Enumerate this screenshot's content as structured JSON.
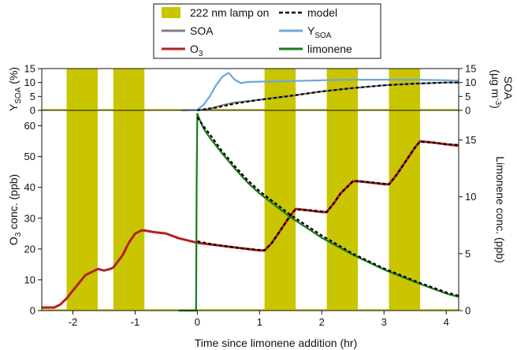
{
  "chart_data": [
    {
      "type": "line",
      "panel": "top",
      "xlabel": "",
      "ylabel_left": "Y_SOA (%)",
      "ylabel_right": "SOA (μg m⁻³)",
      "xlim": [
        -2.5,
        4.2
      ],
      "ylim_left": [
        0,
        15
      ],
      "ylim_right": [
        0,
        15
      ],
      "yticks_left": [
        0,
        5,
        10,
        15
      ],
      "yticks_right": [
        0,
        5,
        10,
        15
      ],
      "lamp_on_intervals": [
        [
          -2.1,
          -1.6
        ],
        [
          -1.35,
          -0.85
        ],
        [
          1.08,
          1.58
        ],
        [
          2.08,
          2.58
        ],
        [
          3.08,
          3.58
        ]
      ],
      "series": [
        {
          "name": "Y_SOA",
          "axis": "left",
          "color": "#6ea6d8",
          "x": [
            -0.25,
            0.0,
            0.1,
            0.2,
            0.3,
            0.4,
            0.5,
            0.6,
            0.7,
            0.8,
            1.0,
            1.5,
            2.0,
            2.5,
            3.0,
            3.5,
            4.0,
            4.2
          ],
          "y": [
            0,
            0.2,
            2,
            5,
            9,
            12,
            13.5,
            11,
            9.8,
            10.2,
            10.3,
            10.5,
            10.8,
            11,
            11,
            11,
            10.8,
            10.6
          ]
        },
        {
          "name": "SOA",
          "axis": "right",
          "color": "#7f7f7f",
          "x": [
            0.0,
            0.2,
            0.4,
            0.6,
            0.8,
            1.0
          ],
          "y": [
            0,
            0.6,
            1.8,
            2.8,
            3.3,
            3.8
          ]
        },
        {
          "name": "SOA",
          "axis": "right",
          "color": "#7f7f7f",
          "x": [
            1.0,
            1.5,
            2.0,
            2.5,
            3.0,
            3.5,
            4.0,
            4.2
          ],
          "y": [
            3.8,
            5.2,
            6.8,
            8.0,
            9.0,
            9.6,
            10.0,
            10.0
          ]
        },
        {
          "name": "model",
          "axis": "right",
          "color": "#000000",
          "dashed": true,
          "x": [
            0.0,
            0.3,
            0.6,
            1.0,
            1.5,
            2.0,
            2.5,
            3.0,
            3.5,
            4.0,
            4.2
          ],
          "y": [
            0,
            1.0,
            2.4,
            3.8,
            5.2,
            6.8,
            8.0,
            9.0,
            9.6,
            10.0,
            10.0
          ]
        }
      ]
    },
    {
      "type": "line",
      "panel": "bottom",
      "xlabel": "Time since limonene addition (hr)",
      "ylabel_left": "O₃ conc. (ppb)",
      "ylabel_right": "Limonene conc. (ppb)",
      "xlim": [
        -2.5,
        4.2
      ],
      "ylim_left": [
        0,
        65
      ],
      "ylim_right": [
        0,
        17.6
      ],
      "xticks": [
        -2,
        -1,
        0,
        1,
        2,
        3,
        4
      ],
      "yticks_left": [
        0,
        10,
        20,
        30,
        40,
        50,
        60
      ],
      "yticks_right": [
        0,
        5,
        10,
        15
      ],
      "lamp_on_intervals": [
        [
          -2.1,
          -1.6
        ],
        [
          -1.35,
          -0.85
        ],
        [
          1.08,
          1.58
        ],
        [
          2.08,
          2.58
        ],
        [
          3.08,
          3.58
        ]
      ],
      "series": [
        {
          "name": "O₃",
          "axis": "left",
          "color": "#b22222",
          "x": [
            -2.5,
            -2.3,
            -2.2,
            -2.1,
            -2.0,
            -1.9,
            -1.8,
            -1.7,
            -1.6,
            -1.5,
            -1.4,
            -1.35,
            -1.2,
            -1.1,
            -1.0,
            -0.9,
            -0.85,
            -0.7,
            -0.5,
            -0.3,
            -0.1,
            0.0,
            0.2,
            0.4,
            0.6,
            0.8,
            1.0,
            1.08,
            1.2,
            1.3,
            1.4,
            1.5,
            1.58,
            1.8,
            2.0,
            2.08,
            2.2,
            2.3,
            2.4,
            2.5,
            2.58,
            2.8,
            3.0,
            3.08,
            3.2,
            3.3,
            3.4,
            3.5,
            3.58,
            3.8,
            4.0,
            4.2
          ],
          "y": [
            1,
            1,
            2,
            4,
            6.5,
            9,
            11.5,
            12.5,
            13.5,
            13,
            13.5,
            14,
            18,
            22,
            25,
            26,
            26,
            25.5,
            25,
            23.5,
            22.5,
            22,
            21.5,
            21,
            20.5,
            20,
            19.5,
            19.5,
            22,
            25,
            28,
            31,
            33,
            32.5,
            32,
            32,
            35,
            38,
            40,
            42,
            42,
            41.5,
            41,
            41,
            44,
            47,
            50,
            53,
            55,
            54.5,
            54,
            53.5
          ]
        },
        {
          "name": "limonene",
          "axis": "right",
          "color": "#1a7a1a",
          "x": [
            -0.3,
            -0.02,
            -0.01,
            0.0,
            0.02,
            0.1,
            0.2,
            0.4,
            0.6,
            0.8,
            1.0,
            1.5,
            2.0,
            2.5,
            3.0,
            3.5,
            4.0,
            4.2
          ],
          "y": [
            0,
            0,
            12,
            17.3,
            17.0,
            16.0,
            15.2,
            13.8,
            12.5,
            11.3,
            10.3,
            8.2,
            6.4,
            4.9,
            3.6,
            2.5,
            1.5,
            1.2
          ]
        },
        {
          "name": "model",
          "axis": "left",
          "color": "#000000",
          "dashed": true,
          "x": [
            0.0,
            0.2,
            0.4,
            0.6,
            0.8,
            1.0,
            1.08,
            1.2,
            1.3,
            1.4,
            1.5,
            1.58,
            1.8,
            2.0,
            2.08,
            2.2,
            2.3,
            2.4,
            2.5,
            2.58,
            2.8,
            3.0,
            3.08,
            3.2,
            3.3,
            3.4,
            3.5,
            3.58,
            3.8,
            4.0,
            4.2
          ],
          "y": [
            22.5,
            21.7,
            21.0,
            20.5,
            20.0,
            19.7,
            19.6,
            22.0,
            25.0,
            28.0,
            31.0,
            32.8,
            32.6,
            32.2,
            32.0,
            35.0,
            38.0,
            40.0,
            42.0,
            42.0,
            41.6,
            41.2,
            41.0,
            44.0,
            47.0,
            50.0,
            53.0,
            54.8,
            54.5,
            54.0,
            53.8
          ]
        },
        {
          "name": "model",
          "axis": "right",
          "color": "#000000",
          "dashed": true,
          "x": [
            0.0,
            0.1,
            0.2,
            0.4,
            0.6,
            0.8,
            1.0,
            1.5,
            2.0,
            2.5,
            3.0,
            3.5,
            4.0,
            4.2
          ],
          "y": [
            17.0,
            16.2,
            15.5,
            14.0,
            12.7,
            11.5,
            10.5,
            8.4,
            6.6,
            5.0,
            3.7,
            2.6,
            1.6,
            1.3
          ]
        }
      ]
    }
  ],
  "legend": [
    {
      "label": "222 nm lamp on",
      "kind": "box",
      "color": "#c9c500"
    },
    {
      "label": "model",
      "kind": "dash",
      "color": "#000000"
    },
    {
      "label": "SOA",
      "kind": "line",
      "color": "#7f7f7f"
    },
    {
      "label": "Y",
      "sub": "SOA",
      "kind": "line",
      "color": "#6ea6d8"
    },
    {
      "label": "O",
      "sub": "3",
      "kind": "line",
      "color": "#b22222"
    },
    {
      "label": "limonene",
      "kind": "line",
      "color": "#1a7a1a"
    }
  ]
}
